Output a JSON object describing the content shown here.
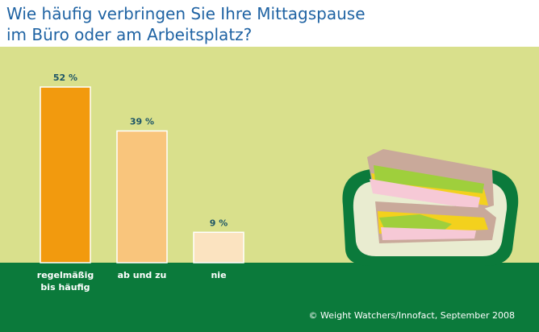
{
  "chart_data": {
    "type": "bar",
    "title": "Wie häufig verbringen Sie Ihre Mittagspause\nim Büro oder am Arbeitsplatz?",
    "categories": [
      "regelmäßig\nbis häufig",
      "ab und zu",
      "nie"
    ],
    "values": [
      52,
      39,
      9
    ],
    "value_labels": [
      "52 %",
      "39 %",
      "9 %"
    ],
    "colors": [
      "#f29a0e",
      "#f9c57c",
      "#fbe3c0"
    ],
    "source": "© Weight Watchers/Innofact, September 2008"
  }
}
